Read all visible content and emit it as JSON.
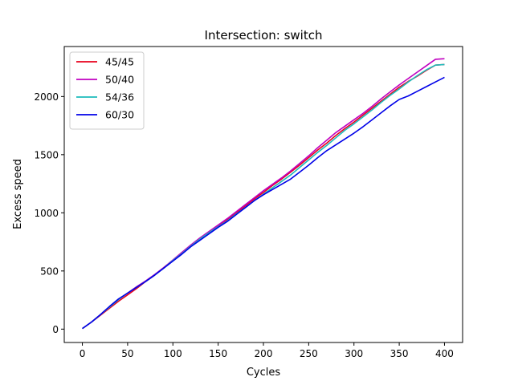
{
  "chart_data": {
    "type": "line",
    "title": "Intersection: switch",
    "xlabel": "Cycles",
    "ylabel": "Excess speed",
    "xlim": [
      -20,
      420
    ],
    "ylim": [
      -115,
      2430
    ],
    "xticks": [
      0,
      50,
      100,
      150,
      200,
      250,
      300,
      350,
      400
    ],
    "yticks": [
      0,
      500,
      1000,
      1500,
      2000
    ],
    "grid": false,
    "legend_position": "top-left",
    "x": [
      0,
      10,
      20,
      30,
      40,
      50,
      60,
      70,
      80,
      90,
      100,
      110,
      120,
      130,
      140,
      150,
      160,
      170,
      180,
      190,
      200,
      210,
      220,
      230,
      240,
      250,
      260,
      270,
      280,
      290,
      300,
      310,
      320,
      330,
      340,
      350,
      360,
      370,
      380,
      390,
      400
    ],
    "series": [
      {
        "name": "45/45",
        "color": "#e8001c",
        "values": [
          5,
          60,
          120,
          180,
          240,
          295,
          350,
          410,
          465,
          530,
          590,
          655,
          720,
          775,
          830,
          885,
          940,
          1000,
          1060,
          1120,
          1175,
          1235,
          1290,
          1350,
          1410,
          1475,
          1540,
          1600,
          1665,
          1725,
          1780,
          1840,
          1900,
          1960,
          2020,
          2080,
          2130,
          2175,
          2225,
          2270,
          2275
        ]
      },
      {
        "name": "50/40",
        "color": "#c000c0",
        "values": [
          5,
          60,
          125,
          190,
          255,
          310,
          365,
          415,
          470,
          530,
          595,
          660,
          725,
          785,
          840,
          895,
          950,
          1010,
          1070,
          1130,
          1190,
          1245,
          1300,
          1360,
          1425,
          1490,
          1560,
          1625,
          1690,
          1745,
          1800,
          1855,
          1915,
          1980,
          2040,
          2100,
          2155,
          2210,
          2265,
          2320,
          2325
        ]
      },
      {
        "name": "54/36",
        "color": "#1cbcbc",
        "values": [
          5,
          60,
          125,
          190,
          255,
          310,
          360,
          410,
          465,
          525,
          590,
          650,
          715,
          775,
          830,
          880,
          930,
          990,
          1045,
          1105,
          1160,
          1215,
          1270,
          1325,
          1390,
          1455,
          1520,
          1580,
          1645,
          1710,
          1765,
          1825,
          1885,
          1950,
          2010,
          2065,
          2125,
          2180,
          2230,
          2270,
          2275
        ]
      },
      {
        "name": "60/30",
        "color": "#0000e8",
        "values": [
          5,
          60,
          125,
          195,
          260,
          310,
          360,
          410,
          465,
          525,
          585,
          645,
          710,
          765,
          820,
          875,
          925,
          985,
          1045,
          1105,
          1155,
          1200,
          1245,
          1290,
          1350,
          1410,
          1475,
          1535,
          1585,
          1635,
          1685,
          1740,
          1800,
          1860,
          1920,
          1975,
          2005,
          2045,
          2085,
          2125,
          2165
        ]
      }
    ]
  }
}
